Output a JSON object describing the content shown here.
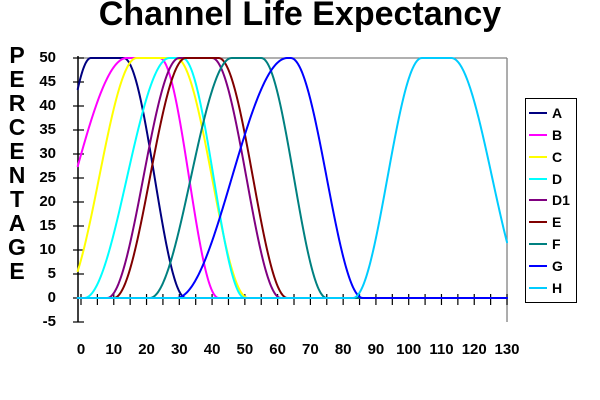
{
  "title": "Channel Life Expectancy",
  "y_axis": {
    "title": "PERCENTAGE",
    "tick_labels": [
      50,
      45,
      40,
      35,
      30,
      25,
      20,
      15,
      10,
      5,
      0,
      -5
    ],
    "min": -5,
    "max": 50
  },
  "x_axis": {
    "tick_labels": [
      0,
      10,
      20,
      30,
      40,
      50,
      60,
      70,
      80,
      90,
      100,
      110,
      120,
      130
    ],
    "minor_tick_step": 5,
    "min": 0,
    "max": 130
  },
  "colors": {
    "background": "#ffffff",
    "text": "#000000",
    "axis": "#000000",
    "plot_border": "#808080"
  },
  "chart_data": {
    "type": "line",
    "title": "Channel Life Expectancy",
    "ylabel": "PERCENTAGE",
    "xlabel": "",
    "ylim": [
      -5,
      50
    ],
    "xlim": [
      0,
      130
    ],
    "x_ticks": [
      0,
      10,
      20,
      30,
      40,
      50,
      60,
      70,
      80,
      90,
      100,
      110,
      120,
      130
    ],
    "y_ticks": [
      50,
      45,
      40,
      35,
      30,
      25,
      20,
      15,
      10,
      5,
      0,
      -5
    ],
    "grid": "top-border-only",
    "legend_position": "right",
    "peak_value": 50,
    "base_value": 0,
    "shape_note": "Each series is a flat-topped bump: rises from 0 to 50, holds ~50, falls back to 0; values are percentages.",
    "series": [
      {
        "name": "A",
        "color": "#000080",
        "peak": 50,
        "envelope": {
          "rise_start": -14,
          "plateau_start": 3,
          "plateau_end": 13,
          "fall_end": 32
        },
        "key_points": [
          [
            0,
            48
          ],
          [
            3,
            50
          ],
          [
            13,
            50
          ],
          [
            22,
            25
          ],
          [
            32,
            0
          ]
        ]
      },
      {
        "name": "B",
        "color": "#FF00FF",
        "peak": 50,
        "envelope": {
          "rise_start": -18,
          "plateau_start": 14,
          "plateau_end": 24,
          "fall_end": 42
        },
        "key_points": [
          [
            0,
            30
          ],
          [
            14,
            50
          ],
          [
            24,
            50
          ],
          [
            33,
            25
          ],
          [
            42,
            0
          ]
        ]
      },
      {
        "name": "C",
        "color": "#FFFF00",
        "peak": 50,
        "envelope": {
          "rise_start": -6,
          "plateau_start": 17,
          "plateau_end": 29,
          "fall_end": 51
        },
        "key_points": [
          [
            0,
            8
          ],
          [
            17,
            50
          ],
          [
            29,
            50
          ],
          [
            40,
            25
          ],
          [
            51,
            0
          ]
        ]
      },
      {
        "name": "D",
        "color": "#00FFFF",
        "peak": 50,
        "envelope": {
          "rise_start": 1,
          "plateau_start": 27,
          "plateau_end": 31,
          "fall_end": 50
        },
        "key_points": [
          [
            1,
            0
          ],
          [
            14,
            25
          ],
          [
            27,
            50
          ],
          [
            31,
            50
          ],
          [
            40,
            25
          ],
          [
            50,
            0
          ]
        ]
      },
      {
        "name": "D1",
        "color": "#800080",
        "peak": 50,
        "envelope": {
          "rise_start": 8,
          "plateau_start": 30,
          "plateau_end": 40,
          "fall_end": 61
        },
        "key_points": [
          [
            8,
            0
          ],
          [
            19,
            25
          ],
          [
            30,
            50
          ],
          [
            40,
            50
          ],
          [
            50,
            25
          ],
          [
            61,
            0
          ]
        ]
      },
      {
        "name": "E",
        "color": "#800000",
        "peak": 50,
        "envelope": {
          "rise_start": 10,
          "plateau_start": 32,
          "plateau_end": 42,
          "fall_end": 63
        },
        "key_points": [
          [
            10,
            0
          ],
          [
            21,
            25
          ],
          [
            32,
            50
          ],
          [
            42,
            50
          ],
          [
            52,
            25
          ],
          [
            63,
            0
          ]
        ]
      },
      {
        "name": "F",
        "color": "#008080",
        "peak": 50,
        "envelope": {
          "rise_start": 21,
          "plateau_start": 46,
          "plateau_end": 55,
          "fall_end": 75
        },
        "key_points": [
          [
            21,
            0
          ],
          [
            33,
            25
          ],
          [
            46,
            50
          ],
          [
            55,
            50
          ],
          [
            65,
            25
          ],
          [
            75,
            0
          ]
        ]
      },
      {
        "name": "G",
        "color": "#0000FF",
        "peak": 50,
        "envelope": {
          "rise_start": 29,
          "plateau_start": 63,
          "plateau_end": 64,
          "fall_end": 86
        },
        "key_points": [
          [
            29,
            0
          ],
          [
            46,
            25
          ],
          [
            63,
            50
          ],
          [
            64,
            50
          ],
          [
            76,
            25
          ],
          [
            86,
            0
          ]
        ]
      },
      {
        "name": "H",
        "color": "#00CCFF",
        "peak": 50,
        "envelope": {
          "rise_start": 83,
          "plateau_start": 104,
          "plateau_end": 113,
          "fall_end": 138
        },
        "key_points": [
          [
            83,
            0
          ],
          [
            94,
            25
          ],
          [
            104,
            50
          ],
          [
            113,
            50
          ],
          [
            124,
            25
          ],
          [
            130,
            12
          ]
        ]
      }
    ]
  },
  "legend": {
    "items": [
      "A",
      "B",
      "C",
      "D",
      "D1",
      "E",
      "F",
      "G",
      "H"
    ]
  }
}
